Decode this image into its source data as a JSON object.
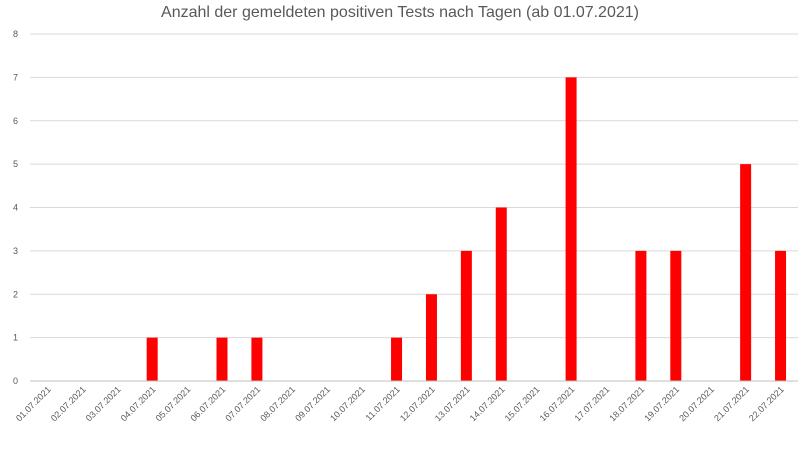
{
  "chart_data": {
    "type": "bar",
    "title": "Anzahl der gemeldeten positiven Tests nach Tagen (ab 01.07.2021)",
    "xlabel": "",
    "ylabel": "",
    "ylim": [
      0,
      8
    ],
    "yticks": [
      "0",
      "1",
      "2",
      "3",
      "4",
      "5",
      "6",
      "7",
      "8"
    ],
    "grid": true,
    "legend": "none",
    "bar_color": "#ff0000",
    "categories": [
      "01.07.2021",
      "02.07.2021",
      "03.07.2021",
      "04.07.2021",
      "05.07.2021",
      "06.07.2021",
      "07.07.2021",
      "08.07.2021",
      "09.07.2021",
      "10.07.2021",
      "11.07.2021",
      "12.07.2021",
      "13.07.2021",
      "14.07.2021",
      "15.07.2021",
      "16.07.2021",
      "17.07.2021",
      "18.07.2021",
      "19.07.2021",
      "20.07.2021",
      "21.07.2021",
      "22.07.2021"
    ],
    "values": [
      0,
      0,
      0,
      1,
      0,
      1,
      1,
      0,
      0,
      0,
      1,
      2,
      3,
      4,
      0,
      7,
      0,
      3,
      3,
      0,
      5,
      3
    ]
  }
}
